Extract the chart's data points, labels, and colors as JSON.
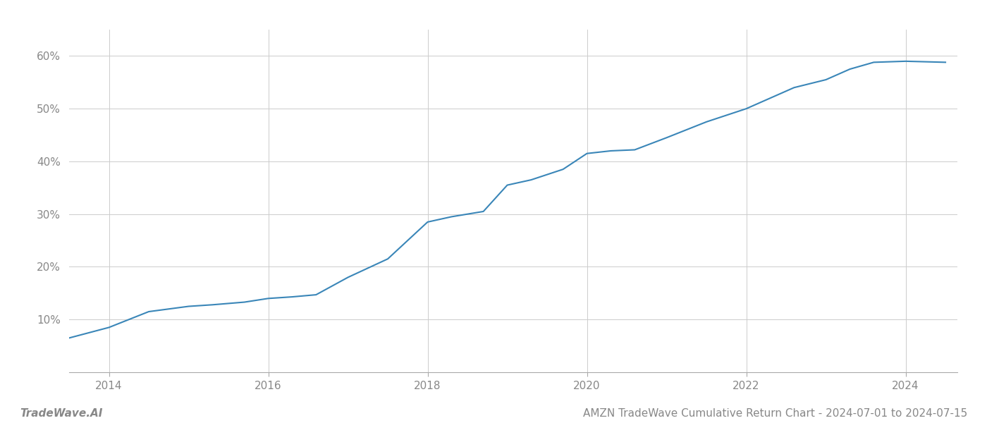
{
  "title": "AMZN TradeWave Cumulative Return Chart - 2024-07-01 to 2024-07-15",
  "watermark": "TradeWave.AI",
  "line_color": "#3a86b8",
  "background_color": "#ffffff",
  "grid_color": "#cccccc",
  "x_values": [
    2013.5,
    2014.0,
    2014.5,
    2015.0,
    2015.3,
    2015.7,
    2016.0,
    2016.3,
    2016.6,
    2017.0,
    2017.5,
    2018.0,
    2018.3,
    2018.7,
    2019.0,
    2019.3,
    2019.7,
    2020.0,
    2020.3,
    2020.6,
    2021.0,
    2021.5,
    2022.0,
    2022.3,
    2022.6,
    2023.0,
    2023.3,
    2023.6,
    2024.0,
    2024.5
  ],
  "y_values": [
    6.5,
    8.5,
    11.5,
    12.5,
    12.8,
    13.3,
    14.0,
    14.3,
    14.7,
    18.0,
    21.5,
    28.5,
    29.5,
    30.5,
    35.5,
    36.5,
    38.5,
    41.5,
    42.0,
    42.2,
    44.5,
    47.5,
    50.0,
    52.0,
    54.0,
    55.5,
    57.5,
    58.8,
    59.0,
    58.8
  ],
  "xlim": [
    2013.5,
    2024.65
  ],
  "ylim": [
    0,
    65
  ],
  "yticks": [
    10,
    20,
    30,
    40,
    50,
    60
  ],
  "xticks": [
    2014,
    2016,
    2018,
    2020,
    2022,
    2024
  ],
  "line_width": 1.5,
  "title_fontsize": 11,
  "tick_fontsize": 11,
  "watermark_fontsize": 11
}
